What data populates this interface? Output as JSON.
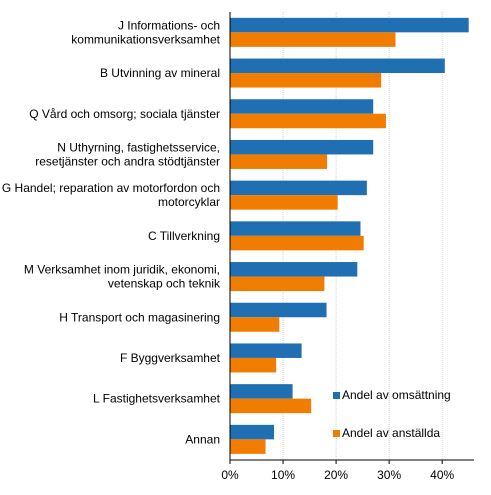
{
  "chart_data": {
    "type": "bar",
    "orientation": "horizontal",
    "categories": [
      [
        "J Informations- och",
        "kommunikationsverksamhet"
      ],
      [
        "B Utvinning av mineral"
      ],
      [
        "Q Vård och omsorg; sociala tjänster"
      ],
      [
        "N Uthyrning, fastighetsservice,",
        "resetjänster och andra stödtjänster"
      ],
      [
        "G Handel; reparation av motorfordon och",
        "motorcyklar"
      ],
      [
        "C Tillverkning"
      ],
      [
        "M Verksamhet inom juridik, ekonomi,",
        "vetenskap och teknik"
      ],
      [
        "H Transport och magasinering"
      ],
      [
        "F Byggverksamhet"
      ],
      [
        "L Fastighetsverksamhet"
      ],
      [
        "Annan"
      ]
    ],
    "series": [
      {
        "name": "Andel av omsättning",
        "color": "#1f6fb2",
        "values": [
          45.0,
          40.5,
          27.0,
          27.0,
          25.8,
          24.6,
          24.0,
          18.2,
          13.5,
          11.8,
          8.3
        ]
      },
      {
        "name": "Andel av anställda",
        "color": "#f07d00",
        "values": [
          31.2,
          28.5,
          29.4,
          18.3,
          20.3,
          25.2,
          17.8,
          9.3,
          8.7,
          15.3,
          6.7
        ]
      }
    ],
    "xlim": [
      0,
      46
    ],
    "ticks": [
      0,
      10,
      20,
      30,
      40
    ],
    "tick_labels": [
      "0%",
      "10%",
      "20%",
      "30%",
      "40%"
    ],
    "grid": "vertical",
    "legend": "bottom-right"
  }
}
